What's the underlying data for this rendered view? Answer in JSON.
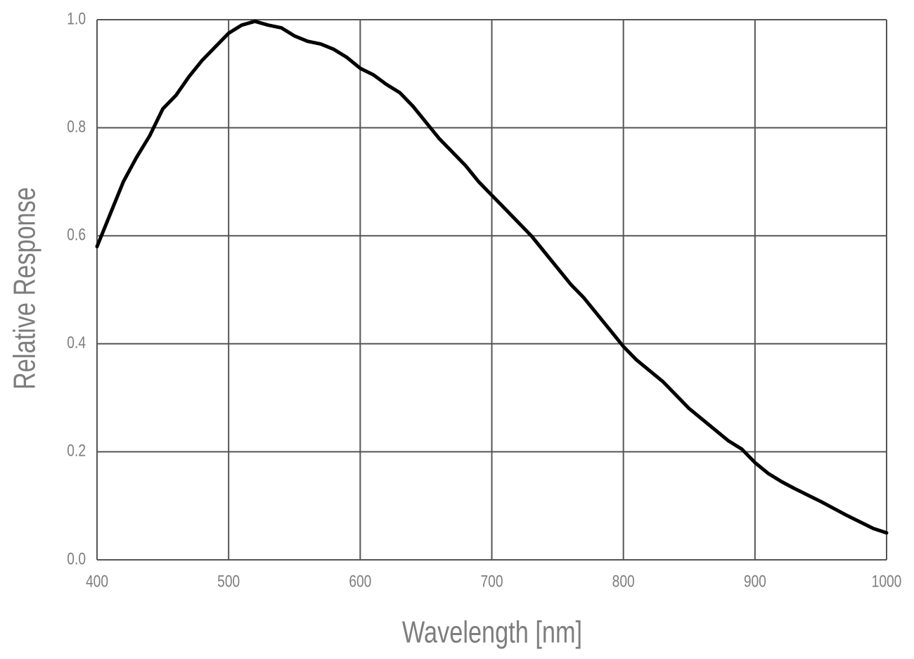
{
  "chart_data": {
    "type": "line",
    "xlabel": "Wavelength [nm]",
    "ylabel": "Relative Response",
    "x": [
      400,
      410,
      420,
      430,
      440,
      450,
      460,
      470,
      480,
      490,
      500,
      510,
      520,
      530,
      540,
      550,
      560,
      570,
      580,
      590,
      600,
      610,
      620,
      630,
      640,
      650,
      660,
      670,
      680,
      690,
      700,
      710,
      720,
      730,
      740,
      750,
      760,
      770,
      780,
      790,
      800,
      810,
      820,
      830,
      840,
      850,
      860,
      870,
      880,
      890,
      900,
      910,
      920,
      930,
      940,
      950,
      960,
      970,
      980,
      990,
      1000
    ],
    "series": [
      {
        "color": "#000000",
        "values": [
          0.58,
          0.64,
          0.7,
          0.745,
          0.785,
          0.835,
          0.86,
          0.895,
          0.925,
          0.95,
          0.975,
          0.99,
          0.997,
          0.99,
          0.985,
          0.97,
          0.96,
          0.955,
          0.945,
          0.93,
          0.91,
          0.898,
          0.88,
          0.865,
          0.84,
          0.81,
          0.78,
          0.755,
          0.73,
          0.7,
          0.675,
          0.65,
          0.625,
          0.6,
          0.57,
          0.54,
          0.51,
          0.485,
          0.455,
          0.425,
          0.395,
          0.37,
          0.35,
          0.33,
          0.305,
          0.28,
          0.26,
          0.24,
          0.22,
          0.205,
          0.18,
          0.16,
          0.145,
          0.132,
          0.12,
          0.108,
          0.095,
          0.082,
          0.07,
          0.058,
          0.05
        ]
      }
    ],
    "xlim": [
      400,
      1000
    ],
    "xticks": [
      400,
      500,
      600,
      700,
      800,
      900,
      1000
    ],
    "ylim": [
      0,
      1
    ],
    "yticks": [
      {
        "value": 0,
        "label": "0.0"
      },
      0.2,
      0.4,
      0.6,
      0.8,
      {
        "value": 1,
        "label": "1.0"
      }
    ],
    "grid": true
  }
}
